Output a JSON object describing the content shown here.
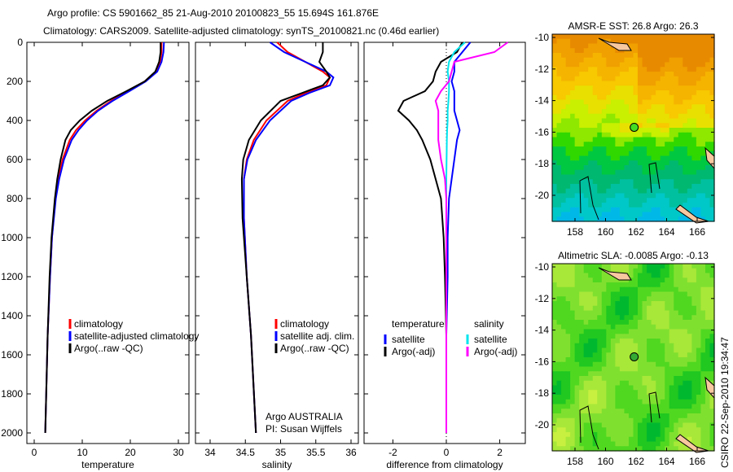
{
  "title_line1": "Argo profile: CS 5901662_85 21-Aug-2010 20100823_55 15.694S 161.876E",
  "title_line2": "Climatology: CARS2009. Satellite-adjusted climatology: synTS_20100821.nc (0.46d earlier)",
  "footer_stamp": "CSIRO 22-Sep-2010 19:34:47",
  "colors": {
    "climatology": "#ff0000",
    "satellite": "#0000ff",
    "argo": "#000000",
    "sal_satellite": "#00e5ee",
    "sal_argo": "#ff00ff"
  },
  "chart_data": [
    {
      "type": "line",
      "id": "temperature",
      "xlabel": "temperature",
      "ylabel": "",
      "xlim": [
        -2,
        31
      ],
      "ylim": [
        2050,
        0
      ],
      "xticks": [
        "0",
        "10",
        "20",
        "30"
      ],
      "yticks": [
        "0",
        "200",
        "400",
        "600",
        "800",
        "1000",
        "1200",
        "1400",
        "1600",
        "1800",
        "2000"
      ],
      "legend": [
        "climatology",
        "satellite-adjusted climatology",
        "Argo(..raw -QC)"
      ],
      "depth": [
        0,
        50,
        100,
        150,
        200,
        250,
        300,
        350,
        400,
        450,
        500,
        600,
        700,
        800,
        1000,
        1200,
        1500,
        2000
      ],
      "series": [
        {
          "name": "climatology",
          "values": [
            26.5,
            26.5,
            26.2,
            25.3,
            23,
            19.5,
            16,
            13,
            10.6,
            8.7,
            7.4,
            5.9,
            5,
            4.4,
            3.7,
            3.3,
            2.8,
            2.3
          ]
        },
        {
          "name": "satellite-adjusted climatology",
          "values": [
            27,
            26.9,
            26.5,
            25.6,
            23.2,
            19.8,
            16.3,
            13.3,
            11,
            9.2,
            7.8,
            6.2,
            5.2,
            4.5,
            3.7,
            3.3,
            2.8,
            2.3
          ]
        },
        {
          "name": "Argo(..raw -QC)",
          "values": [
            26.3,
            26.3,
            26,
            25.2,
            23,
            19.2,
            15.2,
            12,
            9.5,
            7.6,
            6.5,
            5.5,
            4.8,
            4.3,
            3.6,
            3.2,
            2.8,
            2.3
          ]
        }
      ]
    },
    {
      "type": "line",
      "id": "salinity",
      "xlabel": "salinity",
      "xlim": [
        33.8,
        36.05
      ],
      "ylim": [
        2050,
        0
      ],
      "xticks": [
        "34",
        "34.5",
        "35",
        "35.5",
        "36"
      ],
      "legend": [
        "climatology",
        "satellite adj. clim.",
        "Argo(..raw -QC)"
      ],
      "annotation": [
        "Argo AUSTRALIA",
        "PI: Susan Wijffels"
      ],
      "depth": [
        0,
        50,
        100,
        150,
        180,
        220,
        260,
        300,
        400,
        500,
        600,
        700,
        900,
        1200,
        1500,
        2000
      ],
      "series": [
        {
          "name": "climatology",
          "values": [
            34.95,
            35.1,
            35.35,
            35.6,
            35.7,
            35.65,
            35.35,
            35.1,
            34.8,
            34.62,
            34.52,
            34.48,
            34.48,
            34.52,
            34.58,
            34.65
          ]
        },
        {
          "name": "satellite adj. clim.",
          "values": [
            34.85,
            35.05,
            35.35,
            35.65,
            35.75,
            35.7,
            35.4,
            35.15,
            34.85,
            34.65,
            34.53,
            34.48,
            34.48,
            34.52,
            34.58,
            34.65
          ]
        },
        {
          "name": "Argo(..raw -QC)",
          "values": [
            35.6,
            35.6,
            35.55,
            35.65,
            35.7,
            35.6,
            35.3,
            35.0,
            34.72,
            34.55,
            34.47,
            34.45,
            34.46,
            34.52,
            34.58,
            34.65
          ]
        }
      ]
    },
    {
      "type": "line",
      "id": "difference",
      "xlabel": "difference from climatology",
      "xlim": [
        -3.1,
        3.1
      ],
      "ylim": [
        2050,
        0
      ],
      "xticks": [
        "-2",
        "0",
        "2"
      ],
      "legend_headers": [
        "temperature",
        "salinity"
      ],
      "legend": [
        "satellite",
        "Argo(-adj)",
        "satellite",
        "Argo(-adj)"
      ],
      "depth": [
        0,
        50,
        100,
        150,
        200,
        250,
        300,
        350,
        400,
        450,
        500,
        600,
        700,
        800,
        1000,
        1200,
        1500,
        2000
      ],
      "series": [
        {
          "name": "temperature satellite",
          "values": [
            0.9,
            0.6,
            0.3,
            0.3,
            0.2,
            0.3,
            0.3,
            0.3,
            0.4,
            0.5,
            0.4,
            0.3,
            0.2,
            0.1,
            0.05,
            0.05,
            0,
            0
          ]
        },
        {
          "name": "temperature Argo(-adj)",
          "values": [
            0.6,
            0.4,
            -0.2,
            -0.4,
            -0.5,
            -0.8,
            -1.6,
            -1.8,
            -1.4,
            -1.1,
            -0.9,
            -0.6,
            -0.4,
            -0.2,
            -0.1,
            -0.05,
            0,
            0
          ]
        },
        {
          "name": "salinity satellite",
          "values": [
            0.7,
            0.3,
            0.1,
            0.05,
            0.1,
            0.1,
            0.08,
            0.05,
            0.05,
            0.03,
            0.02,
            0.01,
            0,
            0,
            0,
            0,
            0,
            0
          ]
        },
        {
          "name": "salinity Argo(-adj)",
          "values": [
            2.3,
            1.8,
            0.3,
            0.2,
            0.1,
            -0.2,
            -0.4,
            -0.3,
            -0.3,
            -0.3,
            -0.3,
            -0.2,
            -0.05,
            0,
            0,
            0,
            0,
            0
          ]
        }
      ]
    },
    {
      "type": "heatmap",
      "id": "sst_map",
      "title": "AMSR-E SST: 26.8 Argo: 26.3",
      "xticks": [
        "158",
        "160",
        "162",
        "164",
        "166"
      ],
      "yticks": [
        "-10",
        "-12",
        "-14",
        "-16",
        "-18",
        "-20"
      ],
      "xlim": [
        156.6,
        167.2
      ],
      "ylim": [
        -21.6,
        -9.8
      ],
      "argo_position": [
        161.876,
        -15.694
      ]
    },
    {
      "type": "heatmap",
      "id": "sla_map",
      "title": "Altimetric SLA: -0.0085 Argo: -0.13",
      "xticks": [
        "158",
        "160",
        "162",
        "164",
        "166"
      ],
      "yticks": [
        "-10",
        "-12",
        "-14",
        "-16",
        "-18",
        "-20"
      ],
      "xlim": [
        156.6,
        167.2
      ],
      "ylim": [
        -21.6,
        -9.8
      ],
      "argo_position": [
        161.876,
        -15.694
      ]
    }
  ]
}
